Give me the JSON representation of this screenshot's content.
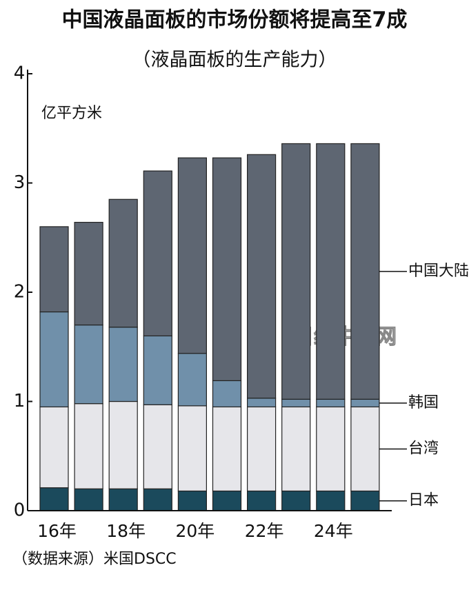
{
  "chart_data": {
    "type": "stacked_bar",
    "title": "中国液晶面板的市场份额将提高至7成",
    "subtitle": "（液晶面板的生产能力）",
    "y_label": "亿平方米",
    "source": "（数据来源）米国DSCC",
    "watermark": "日经中文网",
    "categories": [
      "16年",
      null,
      "18年",
      null,
      "20年",
      null,
      "22年",
      null,
      "24年",
      null
    ],
    "series": [
      {
        "name": "日本",
        "color": "#1b4a5c",
        "values": [
          0.21,
          0.2,
          0.2,
          0.2,
          0.18,
          0.18,
          0.18,
          0.18,
          0.18,
          0.18
        ]
      },
      {
        "name": "台湾",
        "color": "#e6e6ea",
        "values": [
          0.74,
          0.78,
          0.8,
          0.77,
          0.78,
          0.77,
          0.77,
          0.77,
          0.77,
          0.77
        ]
      },
      {
        "name": "韩国",
        "color": "#7090aa",
        "values": [
          0.87,
          0.72,
          0.68,
          0.63,
          0.48,
          0.24,
          0.08,
          0.07,
          0.07,
          0.07
        ]
      },
      {
        "name": "中国大陆",
        "color": "#5e6672",
        "values": [
          0.78,
          0.94,
          1.17,
          1.51,
          1.79,
          2.04,
          2.23,
          2.34,
          2.34,
          2.34
        ]
      }
    ],
    "ylim": [
      0,
      4
    ],
    "yticks": [
      0,
      1,
      2,
      3,
      4
    ]
  }
}
